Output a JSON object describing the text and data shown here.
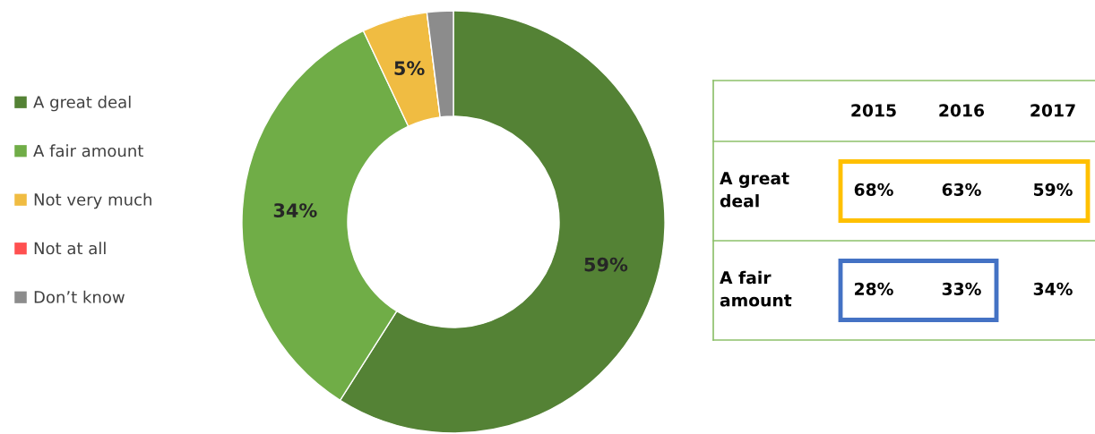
{
  "chart_data": [
    {
      "type": "donut",
      "categories": [
        "A great deal",
        "A fair amount",
        "Not very much",
        "Not at all",
        "Don’t know"
      ],
      "values": [
        59,
        34,
        5,
        0,
        2
      ],
      "colors": [
        "#548235",
        "#70ad47",
        "#f0bc42",
        "#ff5050",
        "#8c8c8c"
      ],
      "value_labels": [
        "59%",
        "34%",
        "5%",
        null,
        null
      ],
      "legend": "left"
    },
    {
      "type": "other",
      "categories": [
        "2015",
        "2016",
        "2017"
      ],
      "series": [
        {
          "name": "A great deal",
          "values": [
            68,
            63,
            59
          ],
          "value_labels": [
            "68%",
            "63%",
            "59%"
          ]
        },
        {
          "name": "A fair amount",
          "values": [
            28,
            33,
            34
          ],
          "value_labels": [
            "28%",
            "33%",
            "34%"
          ]
        }
      ]
    }
  ]
}
